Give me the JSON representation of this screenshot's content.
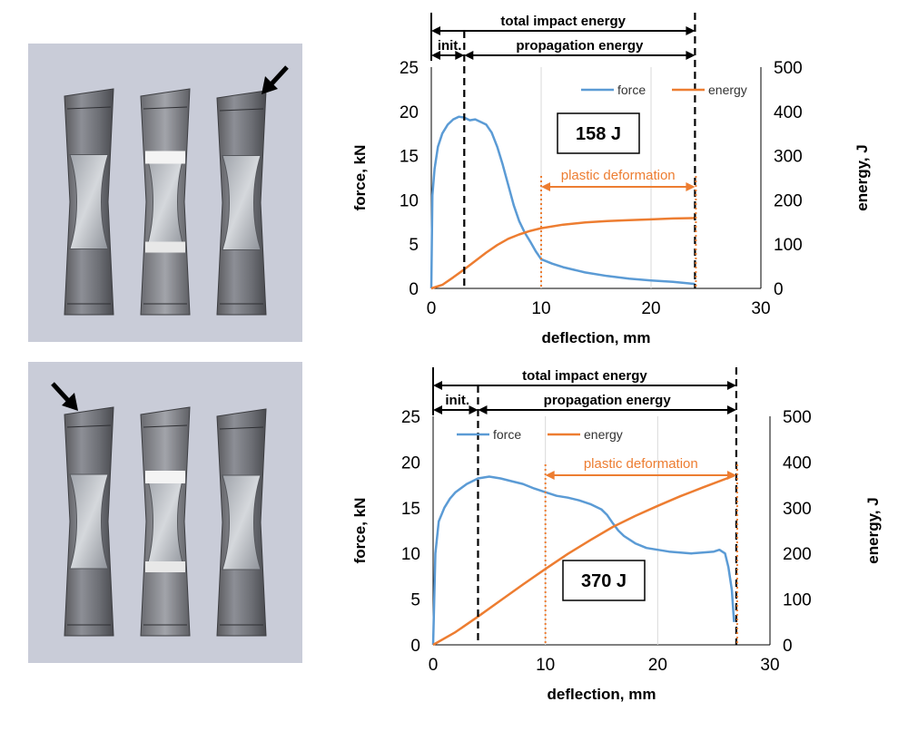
{
  "colors": {
    "force": "#5B9BD5",
    "energy": "#ED7D31",
    "photo_bg": "#c9ccd8"
  },
  "photos": [
    {
      "name": "specimen-photo-top",
      "arrow": "arrow pointing to third specimen"
    },
    {
      "name": "specimen-photo-bottom",
      "arrow": "arrow pointing to first specimen"
    }
  ],
  "chart_data": [
    {
      "type": "line",
      "xlabel": "deflection, mm",
      "ylabel_left": "force, kN",
      "ylabel_right": "energy, J",
      "xlim": [
        0,
        30
      ],
      "ylim_left": [
        0,
        25
      ],
      "ylim_right": [
        0,
        500
      ],
      "xticks": [
        0,
        10,
        20,
        30
      ],
      "yticks_left": [
        0,
        5,
        10,
        15,
        20,
        25
      ],
      "yticks_right": [
        0,
        100,
        200,
        300,
        400,
        500
      ],
      "legend": [
        "force",
        "energy"
      ],
      "legend_position": "top-right",
      "energy_label": "158 J",
      "header": {
        "total": "total impact energy",
        "init": "init.",
        "propagation": "propagation energy"
      },
      "markers": {
        "init_end": 3,
        "plastic_start": 10,
        "end": 24
      },
      "plastic_label": "plastic deformation",
      "series": [
        {
          "name": "force",
          "axis": "left",
          "x": [
            0,
            0.1,
            0.3,
            0.6,
            1.0,
            1.5,
            2.0,
            2.5,
            3.0,
            3.5,
            4.0,
            4.5,
            5.0,
            5.5,
            6.0,
            6.5,
            7.0,
            7.5,
            8.0,
            8.5,
            9.0,
            9.5,
            10.0,
            11,
            12,
            13,
            14,
            16,
            18,
            20,
            22,
            24
          ],
          "values": [
            0,
            10.5,
            13.5,
            16,
            17.5,
            18.5,
            19.1,
            19.4,
            19.3,
            19.0,
            19.1,
            18.8,
            18.5,
            17.6,
            16.0,
            14.0,
            11.7,
            9.4,
            7.6,
            6.3,
            5.3,
            4.2,
            3.3,
            2.8,
            2.4,
            2.1,
            1.8,
            1.4,
            1.1,
            0.9,
            0.75,
            0.5
          ]
        },
        {
          "name": "energy",
          "axis": "right",
          "x": [
            0,
            1,
            2,
            3,
            4,
            5,
            6,
            7,
            8,
            9,
            10,
            12,
            14,
            16,
            18,
            20,
            22,
            24
          ],
          "values": [
            0,
            8,
            25,
            43,
            62,
            81,
            98,
            112,
            122,
            130,
            136,
            144,
            149,
            152,
            154,
            156,
            158,
            159
          ]
        }
      ]
    },
    {
      "type": "line",
      "xlabel": "deflection, mm",
      "ylabel_left": "force, kN",
      "ylabel_right": "energy, J",
      "xlim": [
        0,
        30
      ],
      "ylim_left": [
        0,
        25
      ],
      "ylim_right": [
        0,
        500
      ],
      "xticks": [
        0,
        10,
        20,
        30
      ],
      "yticks_left": [
        0,
        5,
        10,
        15,
        20,
        25
      ],
      "yticks_right": [
        0,
        100,
        200,
        300,
        400,
        500
      ],
      "legend": [
        "force",
        "energy"
      ],
      "legend_position": "top-left",
      "energy_label": "370 J",
      "header": {
        "total": "total impact energy",
        "init": "init.",
        "propagation": "propagation energy"
      },
      "markers": {
        "init_end": 4,
        "plastic_start": 10,
        "end": 27
      },
      "plastic_label": "plastic deformation",
      "series": [
        {
          "name": "force",
          "axis": "left",
          "x": [
            0,
            0.2,
            0.5,
            1.0,
            1.5,
            2.0,
            3.0,
            4.0,
            5.0,
            6.0,
            7.0,
            8.0,
            9.0,
            10.0,
            11.0,
            12.0,
            13.0,
            14.0,
            15.0,
            15.5,
            16.0,
            16.5,
            17.0,
            18.0,
            19.0,
            20.0,
            21.0,
            22.0,
            23.0,
            24.0,
            25.0,
            25.5,
            26.0,
            26.3,
            26.6,
            26.8
          ],
          "values": [
            0,
            10,
            13.5,
            15,
            16,
            16.7,
            17.6,
            18.2,
            18.4,
            18.2,
            17.9,
            17.6,
            17.1,
            16.7,
            16.3,
            16.1,
            15.8,
            15.4,
            14.8,
            14.2,
            13.3,
            12.5,
            11.9,
            11.1,
            10.6,
            10.4,
            10.2,
            10.1,
            10.0,
            10.1,
            10.2,
            10.4,
            10.0,
            8.5,
            6.0,
            2.5
          ]
        },
        {
          "name": "energy",
          "axis": "right",
          "x": [
            0,
            2,
            4,
            6,
            8,
            10,
            12,
            14,
            16,
            18,
            20,
            22,
            24,
            26.8
          ],
          "values": [
            0,
            28,
            62,
            97,
            132,
            166,
            199,
            229,
            258,
            282,
            304,
            325,
            344,
            370
          ]
        }
      ]
    }
  ]
}
